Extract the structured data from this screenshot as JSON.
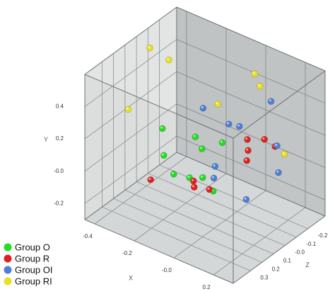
{
  "chart_data": {
    "type": "scatter3d",
    "xlabel": "X",
    "ylabel": "Y",
    "zlabel": "Z",
    "xlim": [
      -0.45,
      0.3
    ],
    "ylim": [
      -0.3,
      0.6
    ],
    "zlim": [
      -0.35,
      0.45
    ],
    "xticks": [
      -0.4,
      -0.2,
      {
        "value": 0,
        "label": "-0.0"
      },
      0.2
    ],
    "yticks": [
      -0.2,
      {
        "value": 0,
        "label": "-0.0"
      },
      0.2,
      0.4
    ],
    "zticks": [
      -0.2,
      -0.1,
      {
        "value": 0,
        "label": "-0.0"
      },
      0.1,
      0.2,
      0.3
    ],
    "grid": true,
    "legend": "lower-left",
    "series": [
      {
        "name": "Group O",
        "color": "#22dd22",
        "x": [
          -0.29,
          -0.17,
          -0.09,
          -0.08,
          -0.19,
          -0.14,
          -0.06,
          -0.04,
          0.06
        ],
        "y": [
          0.14,
          0.11,
          0.12,
          0.08,
          0.11,
          0.02,
          0.04,
          0.01,
          0.02
        ],
        "z": [
          0.05,
          -0.03,
          0.05,
          -0.11,
          0.21,
          0.21,
          0.21,
          0.13,
          0.21
        ]
      },
      {
        "name": "Group R",
        "color": "#e02020",
        "x": [
          -0.21,
          -0.04,
          0.01,
          0.04,
          0.0,
          0.05,
          0.04,
          0.14,
          0.09
        ],
        "y": [
          -0.01,
          0.03,
          0.06,
          0.02,
          0.1,
          0.1,
          0.08,
          0.13,
          0.1
        ],
        "z": [
          0.29,
          0.21,
          0.29,
          0.21,
          -0.19,
          -0.11,
          -0.27,
          -0.19,
          -0.03
        ]
      },
      {
        "name": "Group OI",
        "color": "#4d7fd6",
        "x": [
          -0.27,
          -0.14,
          -0.04,
          0.05,
          0.15,
          0.25,
          -0.07,
          -0.03,
          0.18
        ],
        "y": [
          0.11,
          0.08,
          0.16,
          0.3,
          0.14,
          0.11,
          -0.02,
          -0.03,
          -0.01
        ],
        "z": [
          -0.27,
          -0.27,
          -0.19,
          -0.31,
          -0.19,
          -0.03,
          -0.03,
          0.05,
          0.13
        ]
      },
      {
        "name": "Group RI",
        "color": "#e8e020",
        "x": [
          -0.4,
          -0.35,
          -0.37,
          -0.15,
          -0.01,
          0.04,
          0.28
        ],
        "y": [
          0.54,
          0.45,
          0.3,
          0.24,
          0.46,
          0.43,
          0.24
        ],
        "z": [
          -0.03,
          -0.11,
          0.21,
          -0.19,
          -0.27,
          -0.23,
          -0.03
        ]
      }
    ]
  }
}
